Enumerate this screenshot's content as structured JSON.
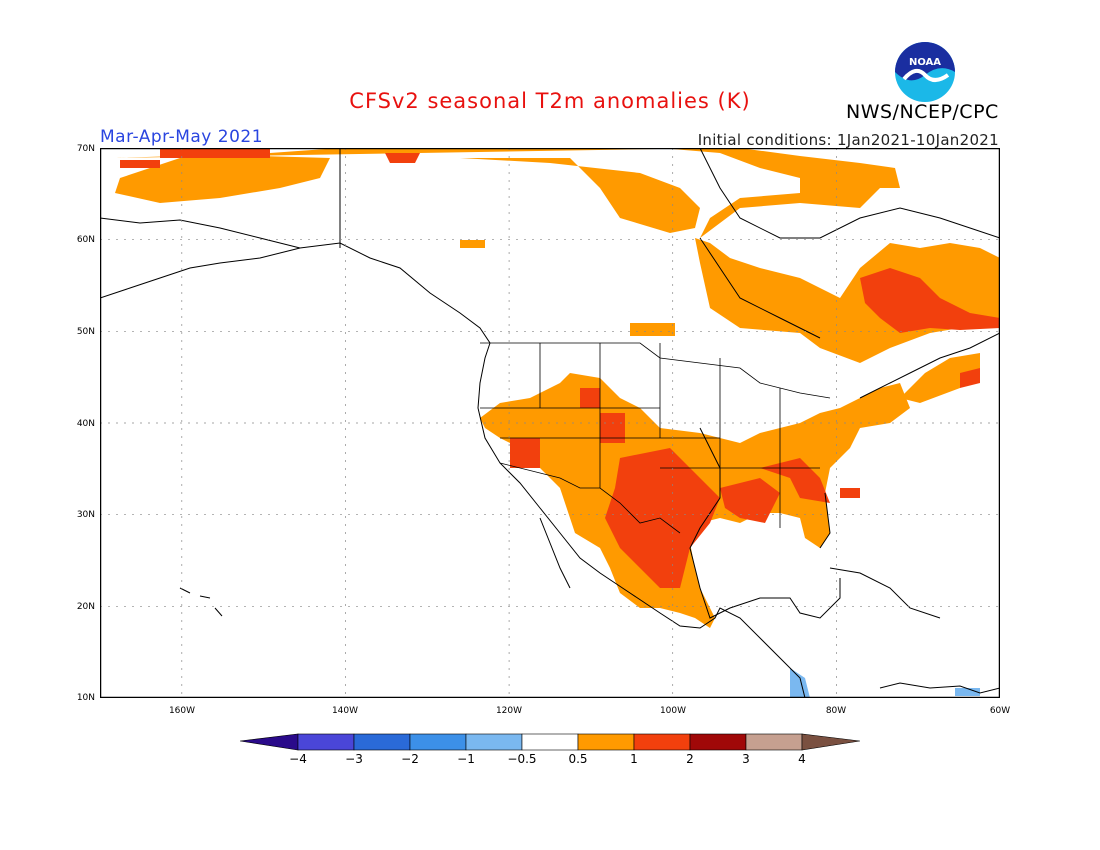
{
  "title": "CFSv2 seasonal T2m anomalies (K)",
  "agency": "NWS/NCEP/CPC",
  "logo_text": "NOAA",
  "season": "Mar-Apr-May 2021",
  "initial_conditions": "Initial conditions: 1Jan2021-10Jan2021",
  "map": {
    "lon_range": [
      -170,
      -60
    ],
    "lat_range": [
      10,
      70
    ],
    "lat_labels": [
      "70N",
      "60N",
      "50N",
      "40N",
      "30N",
      "20N",
      "10N"
    ],
    "lon_labels": [
      "160W",
      "140W",
      "120W",
      "100W",
      "80W",
      "60W"
    ]
  },
  "colorbar": {
    "labels": [
      "-4",
      "-3",
      "-2",
      "-1",
      "-0.5",
      "0.5",
      "1",
      "2",
      "3",
      "4"
    ],
    "colors": [
      "#2a0a8a",
      "#4a46d8",
      "#2a6ad8",
      "#3c90e8",
      "#7ab8f0",
      "#ffffff",
      "#ff9a00",
      "#f2400d",
      "#a00808",
      "#c6a090",
      "#7a5040"
    ]
  }
}
